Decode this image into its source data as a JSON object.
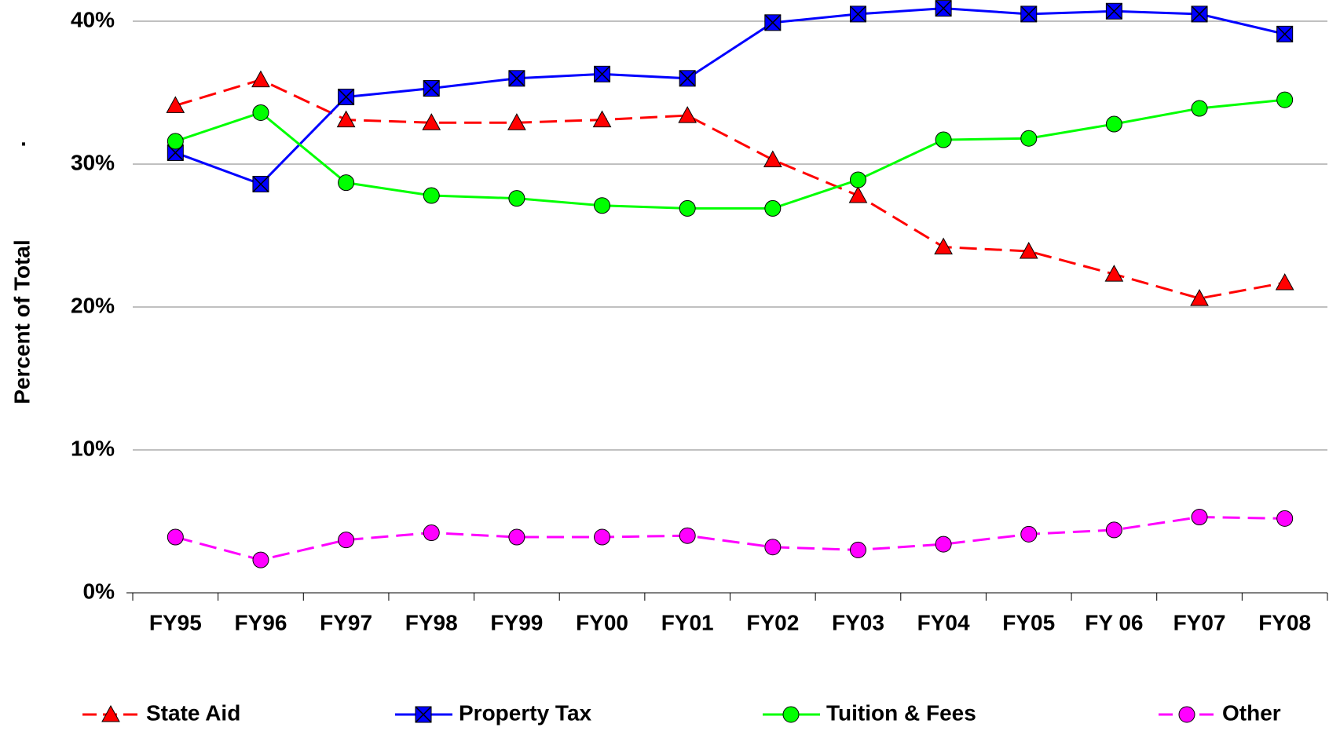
{
  "chart_data": {
    "type": "line",
    "y_axis_label": "Percent of Total",
    "y_axis_mark": ".",
    "categories": [
      "FY95",
      "FY96",
      "FY97",
      "FY98",
      "FY99",
      "FY00",
      "FY01",
      "FY02",
      "FY03",
      "FY04",
      "FY05",
      "FY 06",
      "FY07",
      "FY08"
    ],
    "series": [
      {
        "name": "State Aid",
        "color": "#ff0000",
        "marker": "triangle",
        "dashed": true,
        "values": [
          34.1,
          35.9,
          33.1,
          32.9,
          32.9,
          33.1,
          33.4,
          30.3,
          27.8,
          24.2,
          23.9,
          22.3,
          20.6,
          21.7
        ]
      },
      {
        "name": "Property Tax",
        "color": "#0000ff",
        "marker": "square-x",
        "dashed": false,
        "values": [
          30.8,
          28.6,
          34.7,
          35.3,
          36.0,
          36.3,
          36.0,
          39.9,
          40.5,
          40.9,
          40.5,
          40.7,
          40.5,
          39.1
        ]
      },
      {
        "name": "Tuition & Fees",
        "color": "#00ff00",
        "marker": "circle",
        "dashed": false,
        "values": [
          31.6,
          33.6,
          28.7,
          27.8,
          27.6,
          27.1,
          26.9,
          26.9,
          28.9,
          31.7,
          31.8,
          32.8,
          33.9,
          34.5
        ]
      },
      {
        "name": "Other",
        "color": "#ff00ff",
        "marker": "circle",
        "dashed": true,
        "values": [
          3.9,
          2.3,
          3.7,
          4.2,
          3.9,
          3.9,
          4.0,
          3.2,
          3.0,
          3.4,
          4.1,
          4.4,
          5.3,
          5.2
        ]
      }
    ],
    "ylim": [
      0,
      40
    ],
    "yticks": [
      {
        "value": 0,
        "label": "0%"
      },
      {
        "value": 10,
        "label": "10%"
      },
      {
        "value": 20,
        "label": "20%"
      },
      {
        "value": 30,
        "label": "30%"
      },
      {
        "value": 40,
        "label": "40%"
      }
    ],
    "grid": true,
    "legend": "bottom"
  }
}
